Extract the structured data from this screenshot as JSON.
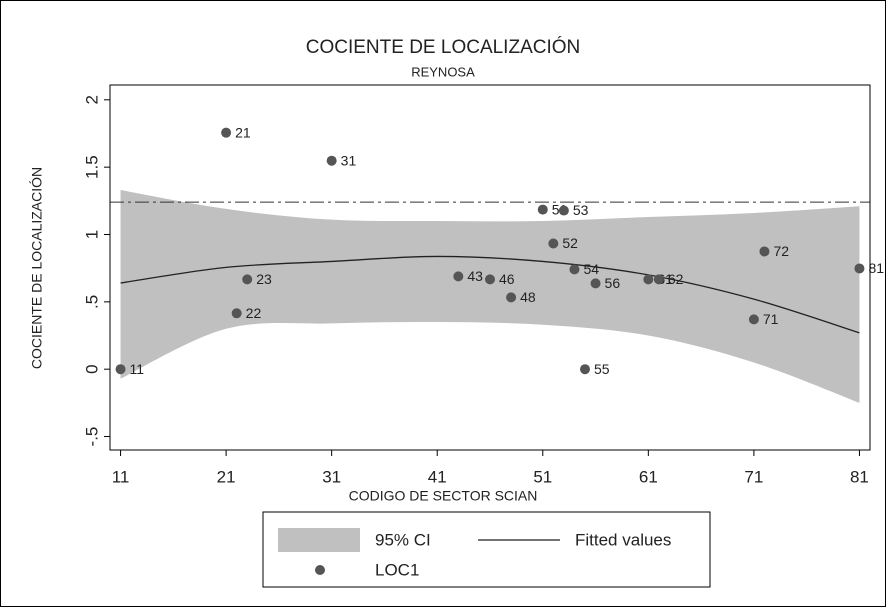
{
  "chart_data": {
    "type": "scatter",
    "title": "COCIENTE DE LOCALIZACIÓN",
    "subtitle": "REYNOSA",
    "x_label": "CODIGO DE SECTOR SCIAN",
    "y_label": "COCIENTE DE LOCALIZACIÓN",
    "xlim": [
      10,
      82
    ],
    "ylim": [
      -0.6,
      2.11
    ],
    "xticks": [
      11,
      21,
      31,
      41,
      51,
      61,
      71,
      81
    ],
    "yticks": [
      {
        "value": -0.5,
        "label": "-.5"
      },
      0,
      {
        "value": 0.5,
        "label": ".5"
      },
      1,
      1.5,
      2
    ],
    "reference_line": 1.24,
    "series": [
      {
        "name": "LOC1",
        "color": "#555555",
        "x": [
          11,
          21,
          22,
          23,
          31,
          43,
          46,
          48,
          51,
          52,
          53,
          54,
          55,
          56,
          61,
          62,
          71,
          72,
          81
        ],
        "values": [
          0,
          1.756,
          0.415,
          0.667,
          1.548,
          0.689,
          0.667,
          0.533,
          1.185,
          0.933,
          1.178,
          0.741,
          0,
          0.637,
          0.667,
          0.667,
          0.37,
          0.874,
          0.748
        ]
      }
    ],
    "fit": {
      "name": "Fitted values",
      "color": "#222222",
      "x": [
        11,
        21,
        31,
        41,
        51,
        61,
        71,
        81
      ],
      "values": [
        0.64,
        0.756,
        0.8,
        0.837,
        0.8,
        0.7,
        0.52,
        0.27
      ]
    },
    "ci": {
      "name": "95% CI",
      "color": "#c0c0c0",
      "high": [
        1.33,
        1.19,
        1.11,
        1.1,
        1.1,
        1.13,
        1.16,
        1.21
      ],
      "low": [
        -0.07,
        0.3,
        0.34,
        0.35,
        0.33,
        0.25,
        0.05,
        -0.25
      ]
    }
  }
}
